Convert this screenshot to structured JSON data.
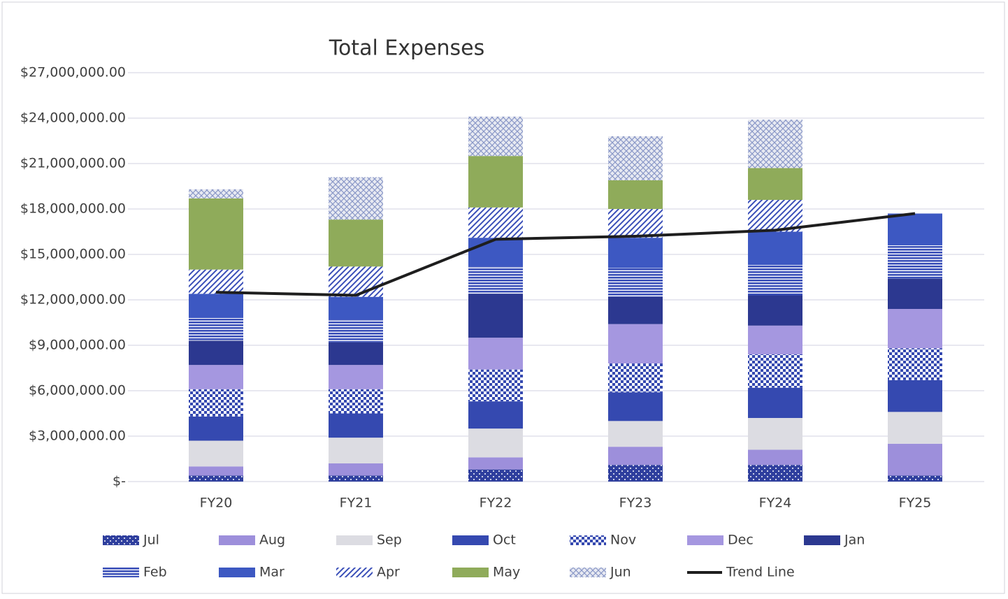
{
  "chart_data": {
    "type": "bar",
    "stacked": true,
    "title": "Total Expenses",
    "categories": [
      "FY20",
      "FY21",
      "FY22",
      "FY23",
      "FY24",
      "FY25"
    ],
    "ylim": [
      0,
      27000000
    ],
    "yticks": [
      {
        "value": 0,
        "label": "$-"
      },
      {
        "value": 3000000,
        "label": "$3,000,000.00"
      },
      {
        "value": 6000000,
        "label": "$6,000,000.00"
      },
      {
        "value": 9000000,
        "label": "$9,000,000.00"
      },
      {
        "value": 12000000,
        "label": "$12,000,000.00"
      },
      {
        "value": 15000000,
        "label": "$15,000,000.00"
      },
      {
        "value": 18000000,
        "label": "$18,000,000.00"
      },
      {
        "value": 21000000,
        "label": "$21,000,000.00"
      },
      {
        "value": 24000000,
        "label": "$24,000,000.00"
      },
      {
        "value": 27000000,
        "label": "$27,000,000.00"
      }
    ],
    "grid": true,
    "legend": "bottom",
    "series": [
      {
        "name": "Jul",
        "color": "#2f3f9e",
        "pattern": "dots",
        "values": [
          400000,
          400000,
          800000,
          1100000,
          1100000,
          400000
        ]
      },
      {
        "name": "Aug",
        "color": "#9d8fdb",
        "pattern": "solid",
        "values": [
          600000,
          800000,
          800000,
          1200000,
          1000000,
          2100000
        ]
      },
      {
        "name": "Sep",
        "color": "#dcdce2",
        "pattern": "solid",
        "values": [
          1700000,
          1700000,
          1900000,
          1700000,
          2100000,
          2100000
        ]
      },
      {
        "name": "Oct",
        "color": "#3549b0",
        "pattern": "solid",
        "values": [
          1600000,
          1600000,
          1800000,
          1900000,
          2000000,
          2100000
        ]
      },
      {
        "name": "Nov",
        "color": "#3549b0",
        "pattern": "checker",
        "values": [
          1800000,
          1600000,
          2100000,
          1900000,
          2200000,
          2100000
        ]
      },
      {
        "name": "Dec",
        "color": "#a597e0",
        "pattern": "solid",
        "values": [
          1600000,
          1600000,
          2100000,
          2600000,
          1900000,
          2600000
        ]
      },
      {
        "name": "Jan",
        "color": "#2c3890",
        "pattern": "solid",
        "values": [
          1600000,
          1500000,
          2900000,
          1800000,
          2000000,
          2000000
        ]
      },
      {
        "name": "Feb",
        "color": "#3a4fb8",
        "pattern": "hstripes",
        "values": [
          1500000,
          1500000,
          1800000,
          1900000,
          2000000,
          2200000
        ]
      },
      {
        "name": "Mar",
        "color": "#3d58c2",
        "pattern": "solid",
        "values": [
          1600000,
          1500000,
          1900000,
          2000000,
          2200000,
          2100000
        ]
      },
      {
        "name": "Apr",
        "color": "#3a4fb8",
        "pattern": "diagonal",
        "values": [
          1600000,
          2000000,
          2000000,
          1900000,
          2100000,
          null
        ]
      },
      {
        "name": "May",
        "color": "#8fab5a",
        "pattern": "solid",
        "values": [
          4700000,
          3100000,
          3400000,
          1900000,
          2100000,
          null
        ]
      },
      {
        "name": "Jun",
        "color": "#8a98c8",
        "pattern": "crosshatch",
        "values": [
          600000,
          2800000,
          2600000,
          2900000,
          3200000,
          null
        ]
      },
      {
        "name": "Trend Line",
        "type": "line",
        "color": "#1e1e1e",
        "values": [
          12500000,
          12300000,
          16000000,
          16200000,
          16600000,
          17700000
        ]
      }
    ]
  }
}
